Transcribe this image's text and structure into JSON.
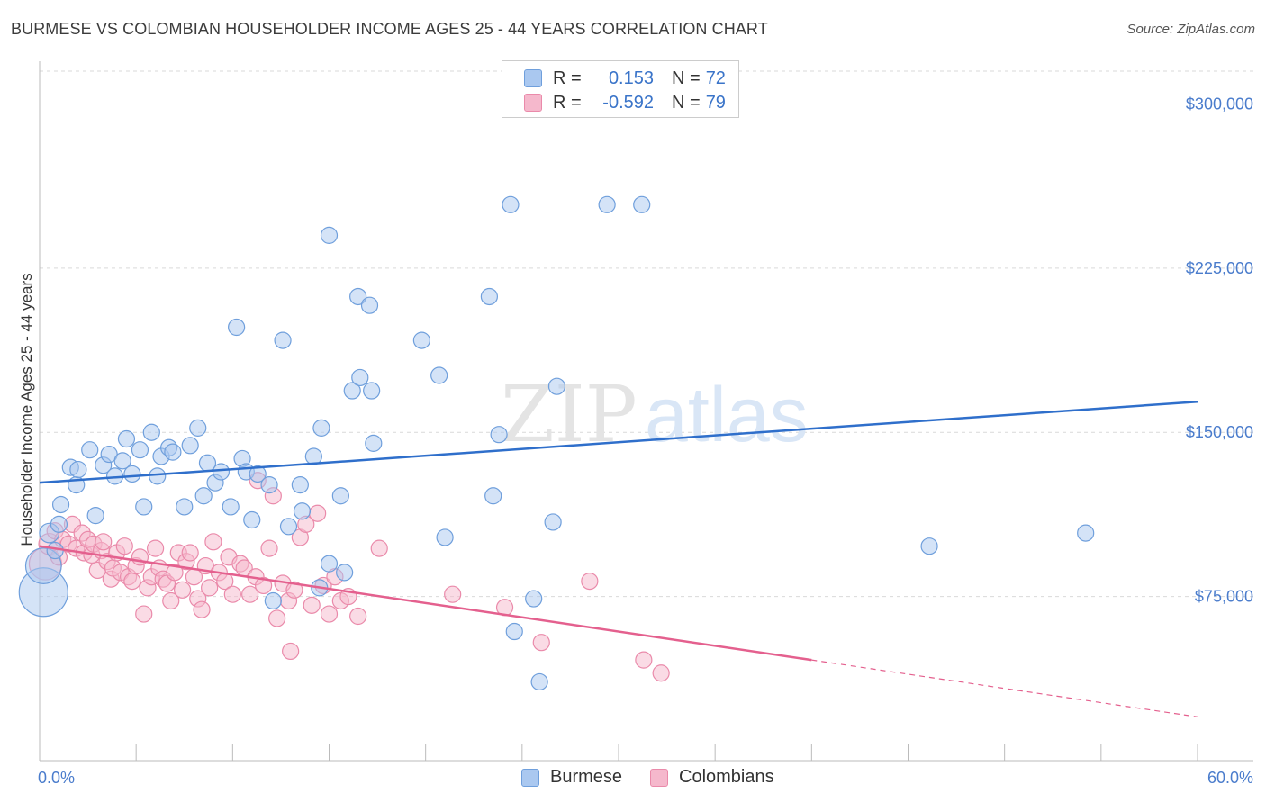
{
  "header": {
    "title": "BURMESE VS COLOMBIAN HOUSEHOLDER INCOME AGES 25 - 44 YEARS CORRELATION CHART",
    "source": "Source: ZipAtlas.com"
  },
  "watermark": {
    "zip": "ZIP",
    "atlas": "atlas"
  },
  "legend_top": {
    "rows": [
      {
        "label": "R =",
        "r": "0.153",
        "n_label": "N =",
        "n": "72"
      },
      {
        "label": "R =",
        "r": "-0.592",
        "n_label": "N =",
        "n": "79"
      }
    ]
  },
  "legend_bottom": {
    "items": [
      "Burmese",
      "Colombians"
    ]
  },
  "colors": {
    "burmese_fill": "#aac8f0",
    "burmese_stroke": "#6f9fdc",
    "burmese_line": "#2f6fcb",
    "colombian_fill": "#f5b8cc",
    "colombian_stroke": "#ea8aaa",
    "colombian_line": "#e4608e",
    "tick_text": "#4a7ccc",
    "grid": "#d9d9d9"
  },
  "chart_data": {
    "type": "scatter",
    "title": "BURMESE VS COLOMBIAN HOUSEHOLDER INCOME AGES 25 - 44 YEARS CORRELATION CHART",
    "xlabel": "",
    "ylabel": "Householder Income Ages 25 - 44 years",
    "xlim": [
      0,
      60
    ],
    "ylim": [
      0,
      315000
    ],
    "x_tick_labels": [
      "0.0%",
      "60.0%"
    ],
    "y_ticks": [
      75000,
      150000,
      225000,
      300000
    ],
    "y_tick_labels": [
      "$75,000",
      "$150,000",
      "$225,000",
      "$300,000"
    ],
    "grid": true,
    "legend_position": "top-center",
    "series": [
      {
        "name": "Burmese",
        "r": 0.153,
        "n": 72,
        "trend": {
          "x": [
            0,
            60
          ],
          "y": [
            127000,
            164000
          ],
          "dashed_from": null
        },
        "points": [
          [
            0.2,
            77000,
            3
          ],
          [
            0.2,
            89000,
            2.2
          ],
          [
            0.5,
            104000,
            1.2
          ],
          [
            1.0,
            108000,
            1
          ],
          [
            1.1,
            117000,
            1
          ],
          [
            1.6,
            134000,
            1
          ],
          [
            1.9,
            126000,
            1
          ],
          [
            2.0,
            133000,
            1
          ],
          [
            2.6,
            142000,
            1
          ],
          [
            2.9,
            112000,
            1
          ],
          [
            3.3,
            135000,
            1
          ],
          [
            3.6,
            140000,
            1
          ],
          [
            3.9,
            130000,
            1
          ],
          [
            4.3,
            137000,
            1
          ],
          [
            4.5,
            147000,
            1
          ],
          [
            4.8,
            131000,
            1
          ],
          [
            5.2,
            142000,
            1
          ],
          [
            5.4,
            116000,
            1
          ],
          [
            5.8,
            150000,
            1
          ],
          [
            6.1,
            130000,
            1
          ],
          [
            6.3,
            139000,
            1
          ],
          [
            6.7,
            143000,
            1
          ],
          [
            6.9,
            141000,
            1
          ],
          [
            7.5,
            116000,
            1
          ],
          [
            7.8,
            144000,
            1
          ],
          [
            8.2,
            152000,
            1
          ],
          [
            8.5,
            121000,
            1
          ],
          [
            8.7,
            136000,
            1
          ],
          [
            9.1,
            127000,
            1
          ],
          [
            9.4,
            132000,
            1
          ],
          [
            9.9,
            116000,
            1
          ],
          [
            10.5,
            138000,
            1
          ],
          [
            10.7,
            132000,
            1
          ],
          [
            11.0,
            110000,
            1
          ],
          [
            11.3,
            131000,
            1
          ],
          [
            11.9,
            126000,
            1
          ],
          [
            10.2,
            198000,
            1
          ],
          [
            12.1,
            73000,
            1
          ],
          [
            12.6,
            192000,
            1
          ],
          [
            12.9,
            107000,
            1
          ],
          [
            13.5,
            126000,
            1
          ],
          [
            13.6,
            114000,
            1
          ],
          [
            14.2,
            139000,
            1
          ],
          [
            14.5,
            79000,
            1
          ],
          [
            14.6,
            152000,
            1
          ],
          [
            15.0,
            90000,
            1
          ],
          [
            15.6,
            121000,
            1
          ],
          [
            15.0,
            240000,
            1
          ],
          [
            15.8,
            86000,
            1
          ],
          [
            16.2,
            169000,
            1
          ],
          [
            16.6,
            175000,
            1
          ],
          [
            16.5,
            212000,
            1
          ],
          [
            17.1,
            208000,
            1
          ],
          [
            17.3,
            145000,
            1
          ],
          [
            17.2,
            169000,
            1
          ],
          [
            19.8,
            192000,
            1
          ],
          [
            20.7,
            176000,
            1
          ],
          [
            21.0,
            102000,
            1
          ],
          [
            23.3,
            212000,
            1
          ],
          [
            23.8,
            149000,
            1
          ],
          [
            23.5,
            121000,
            1
          ],
          [
            24.4,
            254000,
            1
          ],
          [
            24.6,
            59000,
            1
          ],
          [
            25.6,
            74000,
            1
          ],
          [
            25.9,
            36000,
            1
          ],
          [
            26.6,
            109000,
            1
          ],
          [
            26.8,
            171000,
            1
          ],
          [
            29.4,
            254000,
            1
          ],
          [
            31.2,
            254000,
            1
          ],
          [
            46.1,
            98000,
            1
          ],
          [
            54.2,
            104000,
            1
          ],
          [
            0.8,
            96000,
            1
          ]
        ]
      },
      {
        "name": "Colombians",
        "r": -0.592,
        "n": 79,
        "trend": {
          "x": [
            0,
            60
          ],
          "y": [
            98000,
            20000
          ],
          "dashed_from": 40
        },
        "points": [
          [
            0.3,
            90000,
            2
          ],
          [
            0.5,
            99000,
            1.3
          ],
          [
            0.8,
            105000,
            1
          ],
          [
            1.0,
            93000,
            1
          ],
          [
            1.2,
            101000,
            1
          ],
          [
            1.5,
            99000,
            1
          ],
          [
            1.7,
            108000,
            1
          ],
          [
            1.9,
            97000,
            1
          ],
          [
            2.2,
            104000,
            1
          ],
          [
            2.3,
            95000,
            1
          ],
          [
            2.5,
            101000,
            1
          ],
          [
            2.7,
            94000,
            1
          ],
          [
            2.8,
            99000,
            1
          ],
          [
            3.0,
            87000,
            1
          ],
          [
            3.2,
            96000,
            1
          ],
          [
            3.3,
            100000,
            1
          ],
          [
            3.5,
            91000,
            1
          ],
          [
            3.7,
            83000,
            1
          ],
          [
            3.8,
            88000,
            1
          ],
          [
            4.0,
            95000,
            1
          ],
          [
            4.2,
            86000,
            1
          ],
          [
            4.4,
            98000,
            1
          ],
          [
            4.6,
            84000,
            1
          ],
          [
            4.8,
            82000,
            1
          ],
          [
            5.0,
            89000,
            1
          ],
          [
            5.2,
            93000,
            1
          ],
          [
            5.4,
            67000,
            1
          ],
          [
            5.6,
            79000,
            1
          ],
          [
            5.8,
            84000,
            1
          ],
          [
            6.0,
            97000,
            1
          ],
          [
            6.2,
            88000,
            1
          ],
          [
            6.4,
            83000,
            1
          ],
          [
            6.6,
            81000,
            1
          ],
          [
            6.8,
            73000,
            1
          ],
          [
            7.0,
            86000,
            1
          ],
          [
            7.2,
            95000,
            1
          ],
          [
            7.4,
            78000,
            1
          ],
          [
            7.6,
            91000,
            1
          ],
          [
            7.8,
            95000,
            1
          ],
          [
            8.0,
            84000,
            1
          ],
          [
            8.2,
            74000,
            1
          ],
          [
            8.4,
            69000,
            1
          ],
          [
            8.6,
            89000,
            1
          ],
          [
            8.8,
            79000,
            1
          ],
          [
            9.0,
            100000,
            1
          ],
          [
            9.3,
            86000,
            1
          ],
          [
            9.6,
            82000,
            1
          ],
          [
            9.8,
            93000,
            1
          ],
          [
            10.0,
            76000,
            1
          ],
          [
            10.4,
            90000,
            1
          ],
          [
            10.6,
            88000,
            1
          ],
          [
            10.9,
            76000,
            1
          ],
          [
            11.2,
            84000,
            1
          ],
          [
            11.3,
            128000,
            1
          ],
          [
            11.6,
            80000,
            1
          ],
          [
            11.9,
            97000,
            1
          ],
          [
            12.1,
            121000,
            1
          ],
          [
            12.3,
            65000,
            1
          ],
          [
            12.6,
            81000,
            1
          ],
          [
            12.9,
            73000,
            1
          ],
          [
            13.2,
            78000,
            1
          ],
          [
            13.5,
            102000,
            1
          ],
          [
            13.8,
            108000,
            1
          ],
          [
            14.1,
            71000,
            1
          ],
          [
            14.4,
            113000,
            1
          ],
          [
            14.7,
            80000,
            1
          ],
          [
            15.0,
            67000,
            1
          ],
          [
            15.3,
            84000,
            1
          ],
          [
            15.6,
            73000,
            1
          ],
          [
            16.0,
            75000,
            1
          ],
          [
            13.0,
            50000,
            1
          ],
          [
            16.5,
            66000,
            1
          ],
          [
            17.6,
            97000,
            1
          ],
          [
            21.4,
            76000,
            1
          ],
          [
            24.1,
            70000,
            1
          ],
          [
            26.0,
            54000,
            1
          ],
          [
            28.5,
            82000,
            1
          ],
          [
            31.3,
            46000,
            1
          ],
          [
            32.2,
            40000,
            1
          ]
        ]
      }
    ]
  }
}
